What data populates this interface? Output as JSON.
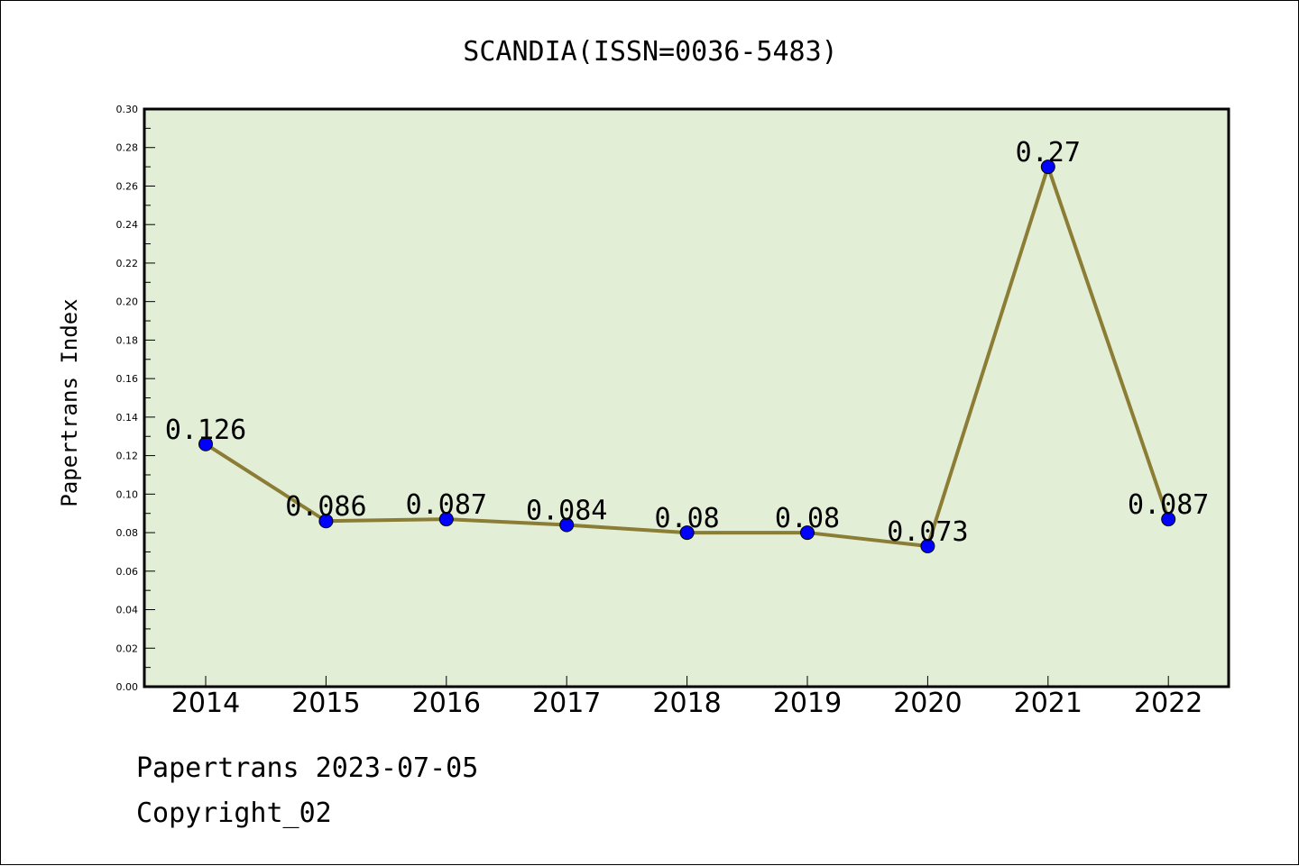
{
  "chart_data": {
    "type": "line",
    "title": "SCANDIA(ISSN=0036-5483)",
    "xlabel": "",
    "ylabel": "Papertrans Index",
    "categories": [
      "2014",
      "2015",
      "2016",
      "2017",
      "2018",
      "2019",
      "2020",
      "2021",
      "2022"
    ],
    "series": [
      {
        "values": [
          0.126,
          0.086,
          0.087,
          0.084,
          0.08,
          0.08,
          0.073,
          0.27,
          0.087
        ],
        "labels": [
          "0.126",
          "0.086",
          "0.087",
          "0.084",
          "0.08",
          "0.08",
          "0.073",
          "0.27",
          "0.087"
        ]
      }
    ],
    "ylim": [
      0,
      0.3
    ],
    "yticks": [
      "0.00",
      "0.02",
      "0.04",
      "0.06",
      "0.08",
      "0.10",
      "0.12",
      "0.14",
      "0.16",
      "0.18",
      "0.20",
      "0.22",
      "0.24",
      "0.26",
      "0.28",
      "0.30"
    ],
    "grid": false,
    "colors": {
      "plot_background": "#e2efd6",
      "line": "#8b7d35",
      "marker": "#0000ff"
    }
  },
  "footer": {
    "line1": "Papertrans 2023-07-05",
    "line2": "Copyright_02"
  }
}
